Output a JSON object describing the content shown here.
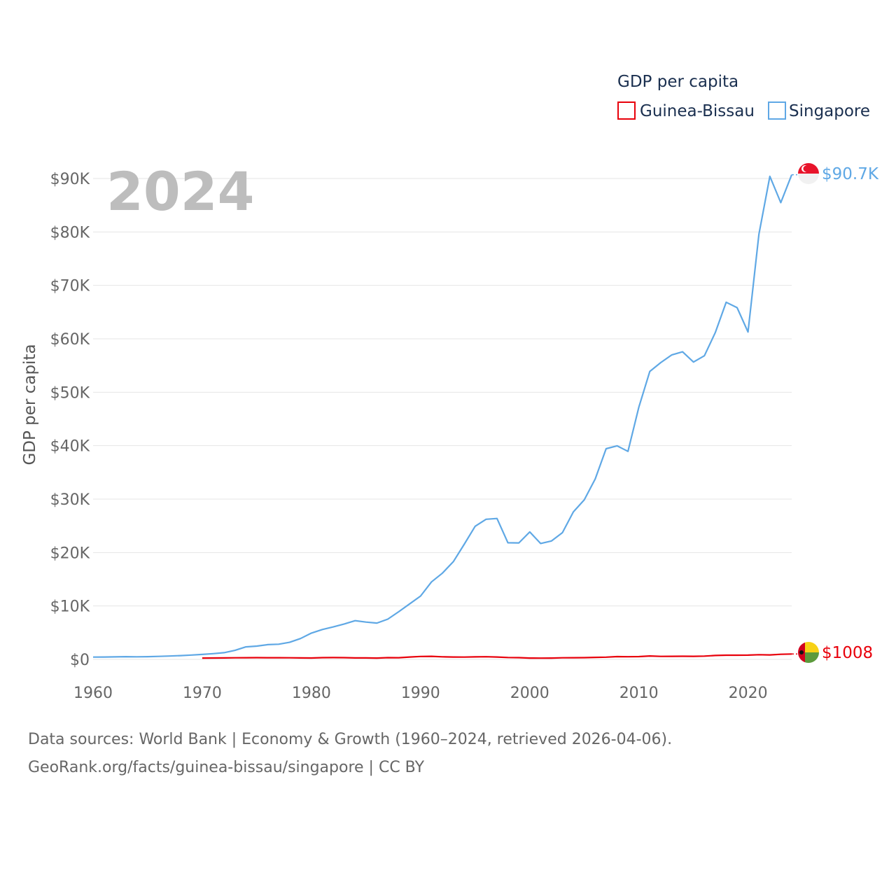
{
  "chart_data": {
    "type": "line",
    "title": "GDP per capita",
    "ylabel": "GDP per capita",
    "xlabel": "",
    "current_year": "2024",
    "xlim": [
      1960,
      2024
    ],
    "ylim": [
      0,
      90000
    ],
    "x_ticks": [
      1960,
      1970,
      1980,
      1990,
      2000,
      2010,
      2020
    ],
    "x_tick_labels": [
      "1960",
      "1970",
      "1980",
      "1990",
      "2000",
      "2010",
      "2020"
    ],
    "y_ticks": [
      0,
      10000,
      20000,
      30000,
      40000,
      50000,
      60000,
      70000,
      80000,
      90000
    ],
    "y_tick_labels": [
      "$0",
      "$10K",
      "$20K",
      "$30K",
      "$40K",
      "$50K",
      "$60K",
      "$70K",
      "$80K",
      "$90K"
    ],
    "legend_position": "top-right",
    "series": [
      {
        "name": "Guinea-Bissau",
        "color": "#e8000b",
        "flag": "guinea-bissau-flag-icon",
        "end_label": "$1008",
        "x": [
          1970,
          1971,
          1972,
          1973,
          1974,
          1975,
          1976,
          1977,
          1978,
          1979,
          1980,
          1981,
          1982,
          1983,
          1984,
          1985,
          1986,
          1987,
          1988,
          1989,
          1990,
          1991,
          1992,
          1993,
          1994,
          1995,
          1996,
          1997,
          1998,
          1999,
          2000,
          2001,
          2002,
          2003,
          2004,
          2005,
          2006,
          2007,
          2008,
          2009,
          2010,
          2011,
          2012,
          2013,
          2014,
          2015,
          2016,
          2017,
          2018,
          2019,
          2020,
          2021,
          2022,
          2023,
          2024
        ],
        "values": [
          250,
          260,
          280,
          300,
          320,
          330,
          320,
          310,
          300,
          280,
          260,
          330,
          340,
          330,
          280,
          280,
          250,
          330,
          320,
          450,
          550,
          580,
          480,
          450,
          430,
          470,
          500,
          450,
          350,
          330,
          250,
          230,
          250,
          300,
          320,
          330,
          380,
          420,
          520,
          500,
          530,
          640,
          560,
          580,
          590,
          580,
          620,
          730,
          780,
          790,
          800,
          880,
          840,
          950,
          1008
        ]
      },
      {
        "name": "Singapore",
        "color": "#5fa8e5",
        "flag": "singapore-flag-icon",
        "end_label": "$90.7K",
        "x": [
          1960,
          1961,
          1962,
          1963,
          1964,
          1965,
          1966,
          1967,
          1968,
          1969,
          1970,
          1971,
          1972,
          1973,
          1974,
          1975,
          1976,
          1977,
          1978,
          1979,
          1980,
          1981,
          1982,
          1983,
          1984,
          1985,
          1986,
          1987,
          1988,
          1989,
          1990,
          1991,
          1992,
          1993,
          1994,
          1995,
          1996,
          1997,
          1998,
          1999,
          2000,
          2001,
          2002,
          2003,
          2004,
          2005,
          2006,
          2007,
          2008,
          2009,
          2010,
          2011,
          2012,
          2013,
          2014,
          2015,
          2016,
          2017,
          2018,
          2019,
          2020,
          2021,
          2022,
          2023,
          2024
        ],
        "values": [
          428,
          449,
          472,
          511,
          485,
          517,
          567,
          626,
          708,
          810,
          925,
          1071,
          1264,
          1685,
          2341,
          2490,
          2770,
          2846,
          3194,
          3901,
          4928,
          5596,
          6078,
          6633,
          7243,
          6985,
          6800,
          7539,
          8917,
          10394,
          11862,
          14502,
          16136,
          18290,
          21553,
          24915,
          26233,
          26376,
          21829,
          21796,
          23852,
          21700,
          22160,
          23730,
          27610,
          29870,
          33770,
          39430,
          39970,
          38930,
          47240,
          53890,
          55550,
          56970,
          57560,
          55650,
          56830,
          61150,
          66840,
          65830,
          61270,
          79600,
          90410,
          85480,
          90700
        ]
      }
    ]
  },
  "footer": {
    "line1": "Data sources: World Bank | Economy & Growth (1960–2024, retrieved 2026-04-06).",
    "line2": "GeoRank.org/facts/guinea-bissau/singapore | CC BY"
  }
}
